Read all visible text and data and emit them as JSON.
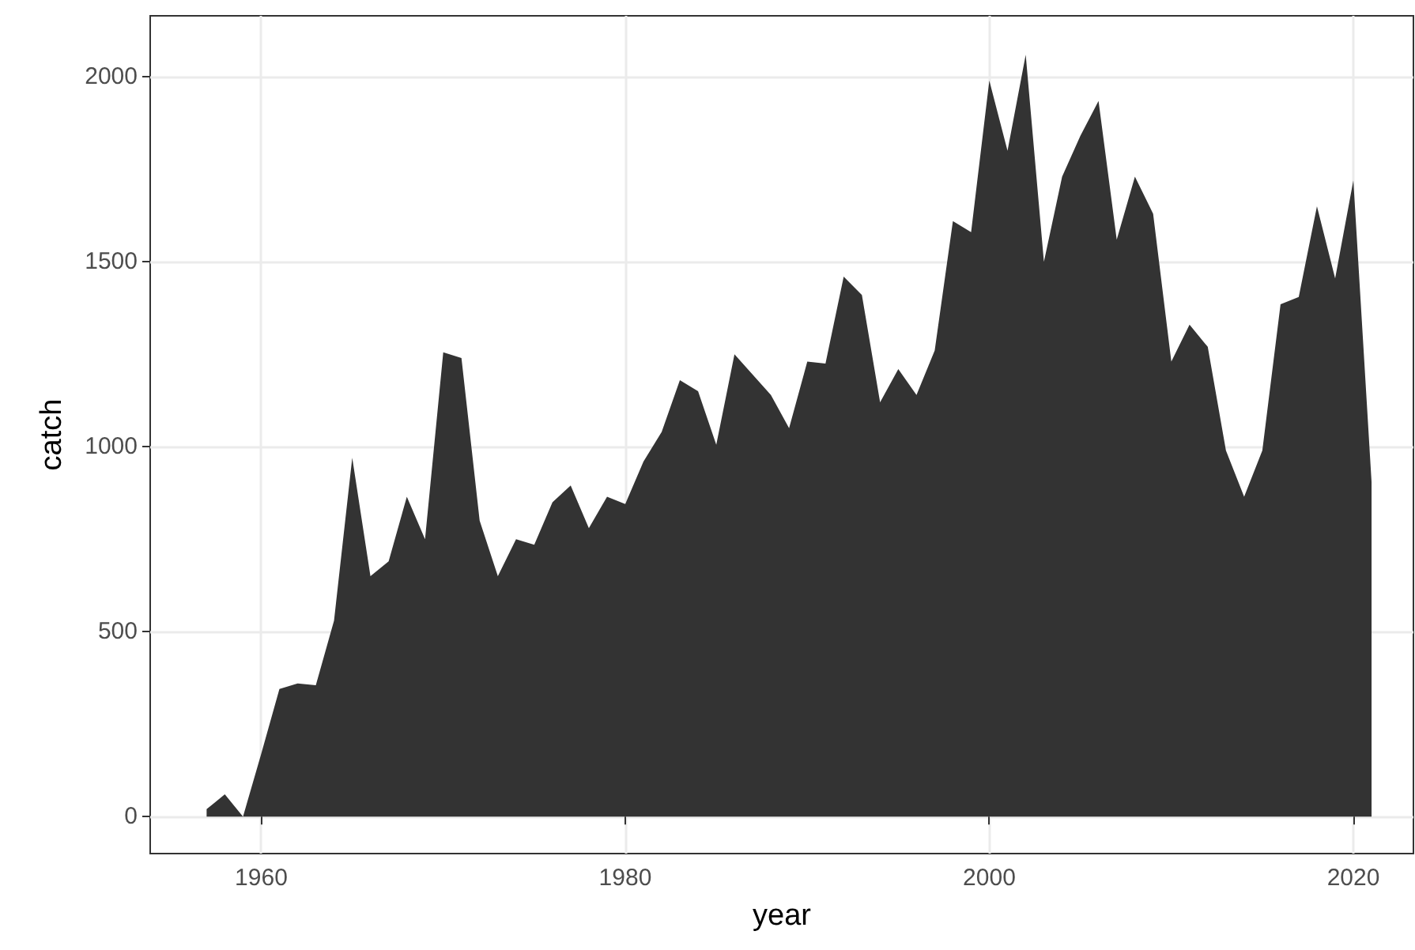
{
  "chart_data": {
    "type": "area",
    "xlabel": "year",
    "ylabel": "catch",
    "x": [
      1957,
      1958,
      1959,
      1960,
      1961,
      1962,
      1963,
      1964,
      1965,
      1966,
      1967,
      1968,
      1969,
      1970,
      1971,
      1972,
      1973,
      1974,
      1975,
      1976,
      1977,
      1978,
      1979,
      1980,
      1981,
      1982,
      1983,
      1984,
      1985,
      1986,
      1987,
      1988,
      1989,
      1990,
      1991,
      1992,
      1993,
      1994,
      1995,
      1996,
      1997,
      1998,
      1999,
      2000,
      2001,
      2002,
      2003,
      2004,
      2005,
      2006,
      2007,
      2008,
      2009,
      2010,
      2011,
      2012,
      2013,
      2014,
      2015,
      2016,
      2017,
      2018,
      2019,
      2020,
      2021
    ],
    "values": [
      20,
      60,
      0,
      170,
      345,
      360,
      355,
      530,
      970,
      650,
      690,
      865,
      750,
      1255,
      1240,
      800,
      650,
      750,
      735,
      850,
      895,
      780,
      865,
      845,
      960,
      1040,
      1180,
      1150,
      1005,
      1250,
      1195,
      1140,
      1050,
      1230,
      1225,
      1460,
      1410,
      1120,
      1210,
      1140,
      1260,
      1610,
      1580,
      1990,
      1800,
      2060,
      1500,
      1730,
      1840,
      1935,
      1560,
      1730,
      1630,
      1230,
      1330,
      1270,
      990,
      865,
      990,
      1385,
      1405,
      1650,
      1455,
      1720,
      905
    ],
    "color": "#333333",
    "xlim": [
      1953.9,
      2023.3
    ],
    "xticks": [
      1960,
      1980,
      2000,
      2020
    ],
    "ylim": [
      -100,
      2165
    ],
    "yticks": [
      0,
      500,
      1000,
      1500,
      2000
    ],
    "grid": true
  }
}
